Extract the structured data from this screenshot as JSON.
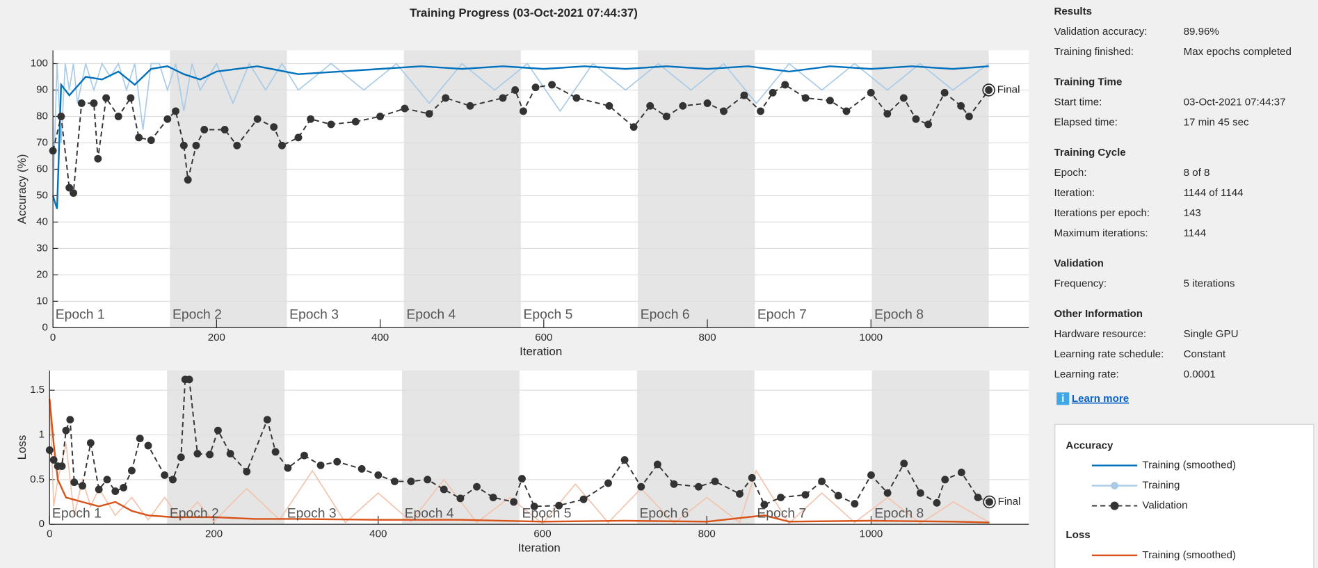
{
  "header": {
    "title": "Training Progress (03-Oct-2021 07:44:37)"
  },
  "chart_data": [
    {
      "type": "line",
      "ylabel": "Accuracy (%)",
      "xlabel": "Iteration",
      "xlim": [
        0,
        1193
      ],
      "ylim": [
        0,
        105
      ],
      "xticks": [
        0,
        200,
        400,
        600,
        800,
        1000
      ],
      "yticks": [
        0,
        10,
        20,
        30,
        40,
        50,
        60,
        70,
        80,
        90,
        100
      ],
      "grid": true,
      "final_label": "Final",
      "epoch_labels": [
        "Epoch 1",
        "Epoch 2",
        "Epoch 3",
        "Epoch 4",
        "Epoch 5",
        "Epoch 6",
        "Epoch 7",
        "Epoch 8"
      ],
      "series": [
        {
          "name": "Training (smoothed)",
          "color": "#0072bd",
          "x": [
            0,
            5,
            10,
            20,
            40,
            60,
            80,
            100,
            120,
            140,
            160,
            180,
            200,
            250,
            300,
            350,
            400,
            450,
            500,
            550,
            600,
            650,
            700,
            750,
            800,
            850,
            900,
            950,
            1000,
            1050,
            1100,
            1144
          ],
          "values": [
            50,
            45,
            92,
            88,
            95,
            94,
            97,
            92,
            98,
            99,
            96,
            94,
            97,
            99,
            96,
            97,
            98,
            99,
            98,
            99,
            98,
            99,
            98,
            99,
            98,
            99,
            97,
            99,
            98,
            99,
            98,
            99
          ]
        },
        {
          "name": "Training",
          "color": "#a9cbe7",
          "x": [
            0,
            5,
            10,
            15,
            20,
            25,
            30,
            40,
            50,
            60,
            70,
            80,
            90,
            100,
            110,
            120,
            130,
            140,
            150,
            160,
            170,
            180,
            200,
            220,
            240,
            260,
            280,
            300,
            340,
            380,
            420,
            460,
            500,
            540,
            580,
            620,
            660,
            700,
            740,
            780,
            820,
            860,
            900,
            940,
            980,
            1020,
            1060,
            1100,
            1144
          ],
          "values": [
            50,
            100,
            70,
            100,
            90,
            100,
            85,
            100,
            90,
            100,
            95,
            100,
            90,
            100,
            75,
            100,
            100,
            90,
            100,
            82,
            100,
            90,
            100,
            85,
            100,
            90,
            100,
            90,
            100,
            90,
            100,
            85,
            100,
            90,
            100,
            82,
            100,
            90,
            100,
            90,
            100,
            85,
            100,
            90,
            100,
            90,
            100,
            90,
            100
          ]
        },
        {
          "name": "Validation",
          "color": "#333333",
          "dashed": true,
          "markers": true,
          "x": [
            0,
            10,
            20,
            25,
            35,
            50,
            55,
            65,
            80,
            95,
            105,
            120,
            140,
            150,
            160,
            165,
            175,
            185,
            210,
            225,
            250,
            270,
            280,
            300,
            315,
            340,
            370,
            400,
            430,
            460,
            480,
            510,
            550,
            565,
            575,
            590,
            610,
            640,
            680,
            710,
            730,
            750,
            770,
            800,
            820,
            845,
            865,
            880,
            895,
            920,
            950,
            970,
            1000,
            1020,
            1040,
            1055,
            1070,
            1090,
            1110,
            1120,
            1144
          ],
          "values": [
            67,
            80,
            53,
            51,
            85,
            85,
            64,
            87,
            80,
            87,
            72,
            71,
            79,
            82,
            69,
            56,
            69,
            75,
            75,
            69,
            79,
            76,
            69,
            72,
            79,
            77,
            78,
            80,
            83,
            81,
            87,
            84,
            87,
            90,
            82,
            91,
            92,
            87,
            84,
            76,
            84,
            80,
            84,
            85,
            82,
            88,
            82,
            89,
            92,
            87,
            86,
            82,
            89,
            81,
            87,
            79,
            77,
            89,
            84,
            80,
            90
          ]
        }
      ]
    },
    {
      "type": "line",
      "ylabel": "Loss",
      "xlabel": "Iteration",
      "xlim": [
        0,
        1192
      ],
      "ylim": [
        0,
        1.72
      ],
      "xticks": [
        0,
        200,
        400,
        600,
        800,
        1000
      ],
      "yticks": [
        0,
        0.5,
        1,
        1.5
      ],
      "grid": true,
      "final_label": "Final",
      "epoch_labels": [
        "Epoch 1",
        "Epoch 2",
        "Epoch 3",
        "Epoch 4",
        "Epoch 5",
        "Epoch 6",
        "Epoch 7",
        "Epoch 8"
      ],
      "series": [
        {
          "name": "Training (smoothed)",
          "color": "#d95319",
          "x": [
            0,
            5,
            10,
            20,
            40,
            60,
            80,
            100,
            120,
            150,
            200,
            250,
            300,
            400,
            500,
            600,
            700,
            800,
            870,
            900,
            1000,
            1100,
            1144
          ],
          "values": [
            1.4,
            0.9,
            0.5,
            0.3,
            0.25,
            0.2,
            0.25,
            0.15,
            0.1,
            0.08,
            0.08,
            0.06,
            0.06,
            0.05,
            0.05,
            0.03,
            0.04,
            0.03,
            0.1,
            0.03,
            0.04,
            0.03,
            0.02
          ]
        },
        {
          "name": "Training",
          "color": "#f2c4ae",
          "x": [
            0,
            5,
            10,
            20,
            30,
            40,
            50,
            60,
            80,
            100,
            120,
            140,
            160,
            180,
            200,
            240,
            280,
            320,
            360,
            400,
            440,
            480,
            520,
            560,
            600,
            640,
            680,
            720,
            760,
            800,
            840,
            860,
            900,
            940,
            980,
            1020,
            1060,
            1100,
            1144
          ],
          "values": [
            1.45,
            0.2,
            0.5,
            0.9,
            0.1,
            0.5,
            0.2,
            0.4,
            0.1,
            0.3,
            0.05,
            0.3,
            0.05,
            0.25,
            0.03,
            0.4,
            0.05,
            0.6,
            0.02,
            0.35,
            0.03,
            0.5,
            0.02,
            0.3,
            0.01,
            0.45,
            0.02,
            0.4,
            0.01,
            0.3,
            0.02,
            0.6,
            0.01,
            0.35,
            0.02,
            0.3,
            0.01,
            0.25,
            0.02
          ]
        },
        {
          "name": "Validation",
          "color": "#333333",
          "dashed": true,
          "markers": true,
          "x": [
            0,
            5,
            10,
            15,
            20,
            25,
            30,
            40,
            50,
            60,
            70,
            80,
            90,
            100,
            110,
            120,
            140,
            150,
            160,
            165,
            170,
            180,
            195,
            205,
            220,
            240,
            265,
            275,
            290,
            310,
            330,
            350,
            380,
            400,
            420,
            440,
            460,
            480,
            500,
            520,
            540,
            565,
            575,
            590,
            620,
            650,
            680,
            700,
            720,
            740,
            760,
            790,
            810,
            840,
            855,
            870,
            890,
            920,
            940,
            960,
            980,
            1000,
            1020,
            1040,
            1060,
            1080,
            1090,
            1110,
            1130,
            1144
          ],
          "values": [
            0.83,
            0.72,
            0.65,
            0.65,
            1.05,
            1.17,
            0.47,
            0.43,
            0.91,
            0.39,
            0.5,
            0.37,
            0.41,
            0.6,
            0.96,
            0.88,
            0.55,
            0.5,
            0.75,
            1.62,
            1.62,
            0.79,
            0.78,
            1.05,
            0.79,
            0.59,
            1.17,
            0.81,
            0.63,
            0.77,
            0.66,
            0.7,
            0.62,
            0.55,
            0.48,
            0.48,
            0.5,
            0.39,
            0.29,
            0.42,
            0.3,
            0.25,
            0.51,
            0.2,
            0.21,
            0.28,
            0.46,
            0.72,
            0.42,
            0.67,
            0.45,
            0.42,
            0.48,
            0.34,
            0.52,
            0.22,
            0.3,
            0.33,
            0.48,
            0.32,
            0.23,
            0.55,
            0.35,
            0.68,
            0.35,
            0.24,
            0.5,
            0.58,
            0.3,
            0.25
          ]
        }
      ]
    }
  ],
  "panel": {
    "sections": [
      {
        "title": "Results",
        "rows": [
          [
            "Validation accuracy:",
            "89.96%"
          ],
          [
            "Training finished:",
            "Max epochs completed"
          ]
        ]
      },
      {
        "title": "Training Time",
        "rows": [
          [
            "Start time:",
            "03-Oct-2021 07:44:37"
          ],
          [
            "Elapsed time:",
            "17 min 45 sec"
          ]
        ]
      },
      {
        "title": "Training Cycle",
        "rows": [
          [
            "Epoch:",
            "8 of 8"
          ],
          [
            "Iteration:",
            "1144 of 1144"
          ],
          [
            "Iterations per epoch:",
            "143"
          ],
          [
            "Maximum iterations:",
            "1144"
          ]
        ]
      },
      {
        "title": "Validation",
        "rows": [
          [
            "Frequency:",
            "5 iterations"
          ]
        ]
      },
      {
        "title": "Other Information",
        "rows": [
          [
            "Hardware resource:",
            "Single GPU"
          ],
          [
            "Learning rate schedule:",
            "Constant"
          ],
          [
            "Learning rate:",
            "0.0001"
          ]
        ]
      }
    ],
    "link": "Learn more"
  },
  "legend": {
    "accuracy_title": "Accuracy",
    "loss_title": "Loss"
  }
}
